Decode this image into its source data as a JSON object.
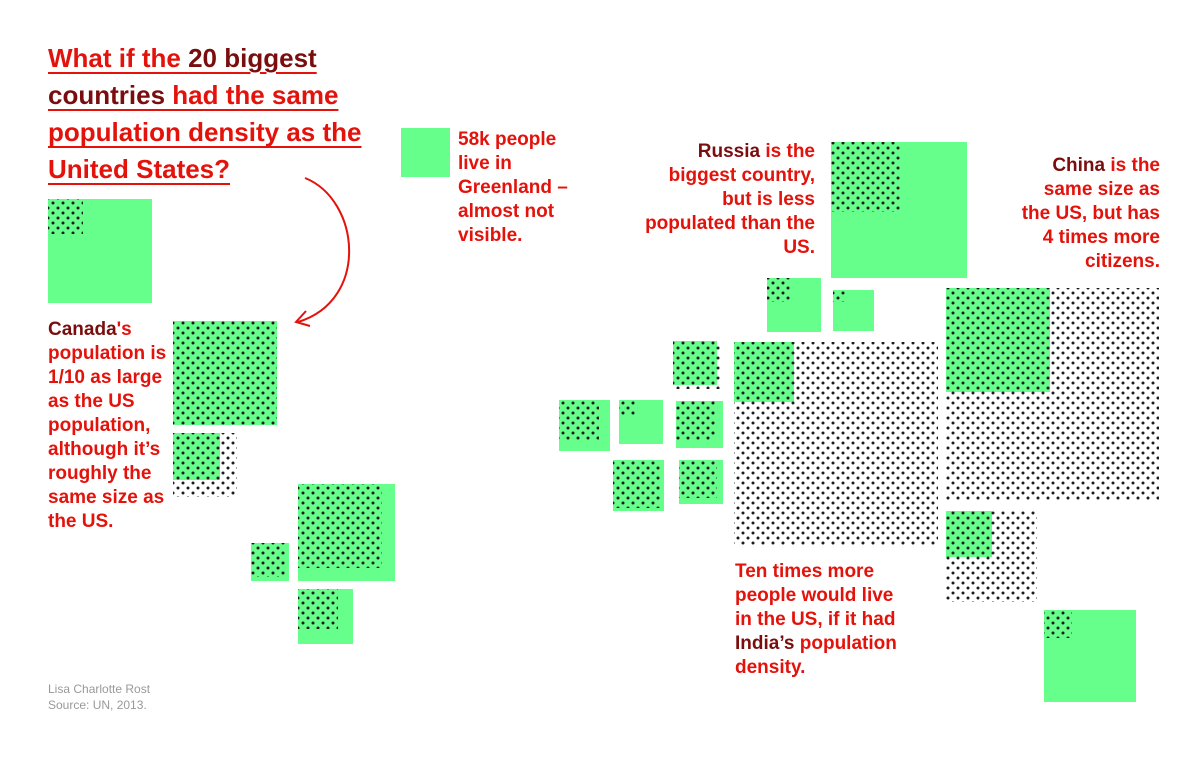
{
  "colors": {
    "accent": "#e3120b",
    "highlight": "#7a0e0e",
    "land": "#66ff8c",
    "dots": "#1a1a1a"
  },
  "title": {
    "part1": "What if the ",
    "em1": "20 biggest countries",
    "part2": " had the same population density as the United States?"
  },
  "annotations": {
    "canada": {
      "em": "Canada",
      "text": "'s population is 1/10 as large as the US population, although it’s roughly the same size as the US."
    },
    "greenland": {
      "text": "58k people live in Greenland – almost not visible."
    },
    "russia": {
      "em": "Russia",
      "text": " is the biggest country, but is less populated than the US."
    },
    "china": {
      "em": "China",
      "text": " is the same size as the US, but has 4 times more citizens."
    },
    "india": {
      "text1": "Ten times more people would live in the US, if it had ",
      "em": "India’s",
      "text2": " population density."
    }
  },
  "credit": {
    "author": "Lisa Charlotte Rost",
    "source": "Source: UN, 2013."
  },
  "legend_encoding": {
    "green_square": "land area",
    "dotted_square": "population"
  }
}
